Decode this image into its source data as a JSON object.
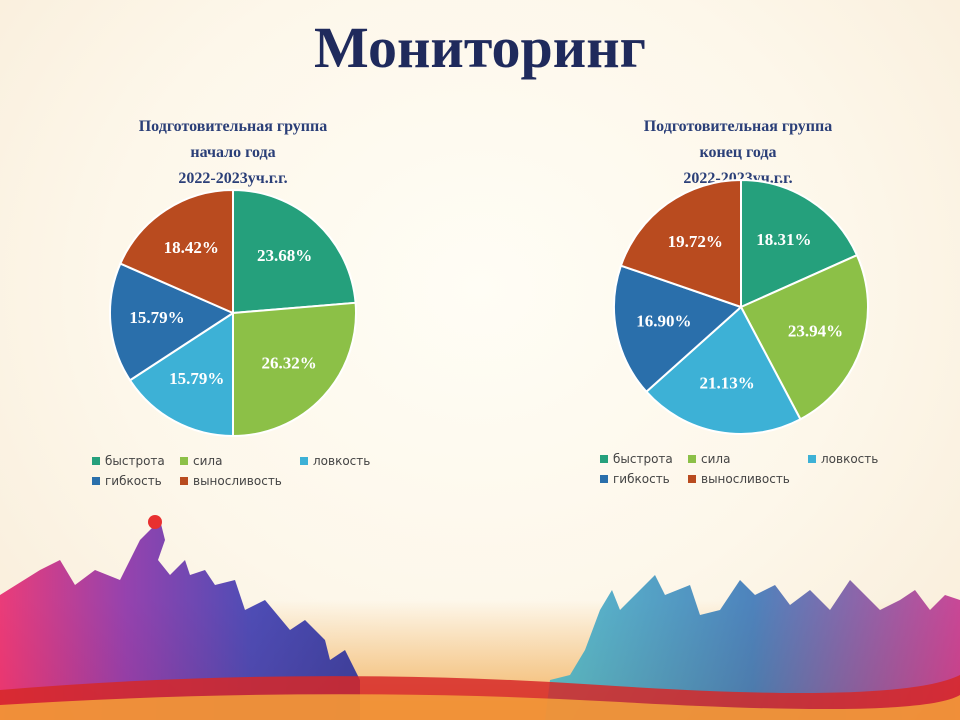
{
  "slide": {
    "title": "Мониторинг"
  },
  "charts": [
    {
      "title_lines": [
        "Подготовительная группа",
        "начало года",
        "2022-2023уч.г.г."
      ]
    },
    {
      "title_lines": [
        "Подготовительная группа",
        "конец года",
        "2022-2023уч.г.г."
      ]
    }
  ],
  "legend": [
    "быстрота",
    "сила",
    "ловкость",
    "гибкость",
    "выносливость"
  ],
  "colors": {
    "быстрота": "#25a07c",
    "сила": "#8cc047",
    "ловкость": "#3db1d6",
    "гибкость": "#2a6fab",
    "выносливость": "#b94b1f"
  },
  "chart_data": [
    {
      "type": "pie",
      "categories": [
        "быстрота",
        "сила",
        "ловкость",
        "гибкость",
        "выносливость"
      ],
      "values": [
        23.68,
        26.32,
        15.79,
        15.79,
        18.42
      ],
      "labels": [
        "23.68%",
        "26.32%",
        "15.79%",
        "15.79%",
        "18.42%"
      ],
      "title": "Подготовительная группа начало года 2022-2023уч.г.г.",
      "legend_position": "bottom"
    },
    {
      "type": "pie",
      "categories": [
        "быстрота",
        "сила",
        "ловкость",
        "гибкость",
        "выносливость"
      ],
      "values": [
        18.31,
        23.94,
        21.13,
        16.9,
        19.72
      ],
      "labels": [
        "18.31%",
        "23.94%",
        "21.13%",
        "16.90%",
        "19.72%"
      ],
      "title": "Подготовительная группа конец года 2022-2023уч.г.г.",
      "legend_position": "bottom"
    }
  ]
}
